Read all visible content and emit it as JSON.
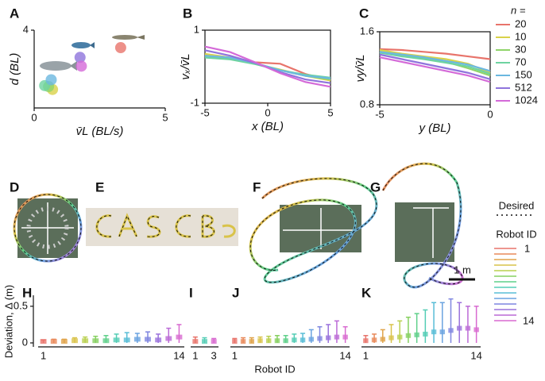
{
  "chart_data": [
    {
      "type": "scatter",
      "label": "A",
      "xlabel": "v̄L (BL/s)",
      "ylabel": "d (BL)",
      "xlim": [
        0,
        5
      ],
      "ylim": [
        0,
        4
      ],
      "xticks": [
        0,
        5
      ],
      "yticks": [
        4
      ],
      "x": [
        3.3,
        0.7,
        0.55,
        0.4,
        0.65,
        1.75,
        1.8
      ],
      "values": [
        3.1,
        0.95,
        1.1,
        1.15,
        1.45,
        2.6,
        2.15
      ],
      "colors": [
        "#e8746b",
        "#d9d24a",
        "#8fd46a",
        "#6ed3a0",
        "#6bb8e0",
        "#8f74dc",
        "#d46ad8"
      ]
    },
    {
      "type": "line",
      "label": "B",
      "xlabel": "x (BL)",
      "ylabel": "vₓ/v̄L",
      "legend_title": "n =",
      "xlim": [
        -5,
        5
      ],
      "ylim": [
        -1,
        1
      ],
      "xticks": [
        -5,
        0,
        5
      ],
      "yticks": [
        -1,
        1
      ],
      "x": [
        -5,
        -3,
        -1,
        1,
        3,
        5
      ],
      "series": [
        {
          "name": "20",
          "color": "#e8746b",
          "values": [
            0.32,
            0.22,
            0.12,
            0.08,
            -0.2,
            -0.38
          ]
        },
        {
          "name": "10",
          "color": "#d9d24a",
          "values": [
            0.35,
            0.25,
            0.08,
            -0.08,
            -0.25,
            -0.38
          ]
        },
        {
          "name": "30",
          "color": "#8fd46a",
          "values": [
            0.3,
            0.22,
            0.08,
            -0.1,
            -0.25,
            -0.35
          ]
        },
        {
          "name": "70",
          "color": "#6ed3a0",
          "values": [
            0.25,
            0.2,
            0.07,
            -0.1,
            -0.22,
            -0.3
          ]
        },
        {
          "name": "150",
          "color": "#6bb8e0",
          "values": [
            0.3,
            0.25,
            0.1,
            -0.1,
            -0.25,
            -0.32
          ]
        },
        {
          "name": "512",
          "color": "#8f74dc",
          "values": [
            0.45,
            0.3,
            0.1,
            -0.15,
            -0.35,
            -0.45
          ]
        },
        {
          "name": "1024",
          "color": "#d46ad8",
          "values": [
            0.55,
            0.4,
            0.12,
            -0.18,
            -0.42,
            -0.55
          ]
        }
      ]
    },
    {
      "type": "line",
      "label": "C",
      "xlabel": "y (BL)",
      "ylabel": "vy/v̄L",
      "xlim": [
        -5,
        0
      ],
      "ylim": [
        0.8,
        1.6
      ],
      "xticks": [
        -5,
        0
      ],
      "yticks": [
        0.8,
        1.6
      ],
      "x": [
        -5,
        -4,
        -3,
        -2,
        -1,
        0
      ],
      "series": [
        {
          "color": "#e8746b",
          "values": [
            1.41,
            1.4,
            1.38,
            1.36,
            1.33,
            1.3
          ]
        },
        {
          "color": "#d9d24a",
          "values": [
            1.4,
            1.36,
            1.33,
            1.3,
            1.25,
            1.15
          ]
        },
        {
          "color": "#8fd46a",
          "values": [
            1.38,
            1.34,
            1.31,
            1.27,
            1.2,
            1.12
          ]
        },
        {
          "color": "#6ed3a0",
          "values": [
            1.37,
            1.33,
            1.3,
            1.26,
            1.22,
            1.14
          ]
        },
        {
          "color": "#6bb8e0",
          "values": [
            1.38,
            1.35,
            1.32,
            1.28,
            1.24,
            1.17
          ]
        },
        {
          "color": "#8f74dc",
          "values": [
            1.35,
            1.3,
            1.25,
            1.2,
            1.15,
            1.08
          ]
        },
        {
          "color": "#d46ad8",
          "values": [
            1.32,
            1.27,
            1.22,
            1.17,
            1.12,
            1.05
          ]
        }
      ]
    },
    {
      "type": "box",
      "label": "H",
      "ylabel": "Deviation, Δ (m)",
      "ylim": [
        0,
        0.65
      ],
      "yticks": [
        0,
        0.5
      ],
      "categories": [
        "1",
        null,
        null,
        null,
        null,
        null,
        null,
        null,
        null,
        null,
        null,
        null,
        null,
        "14"
      ],
      "values": [
        0.02,
        0.02,
        0.02,
        0.03,
        0.03,
        0.03,
        0.03,
        0.04,
        0.04,
        0.05,
        0.05,
        0.04,
        0.06,
        0.08
      ],
      "max": [
        0.04,
        0.05,
        0.05,
        0.07,
        0.08,
        0.09,
        0.1,
        0.12,
        0.14,
        0.13,
        0.15,
        0.12,
        0.2,
        0.25
      ]
    },
    {
      "type": "box",
      "label": "I",
      "xlabel": "Robot ID",
      "ylim": [
        0,
        0.65
      ],
      "categories": [
        "1",
        null,
        "3"
      ],
      "values": [
        0.02,
        0.02,
        0.02
      ],
      "max": [
        0.08,
        0.07,
        0.06
      ]
    },
    {
      "type": "box",
      "label": "J",
      "ylim": [
        0,
        0.65
      ],
      "categories": [
        "1",
        null,
        null,
        null,
        null,
        null,
        null,
        null,
        null,
        null,
        null,
        null,
        null,
        "14"
      ],
      "values": [
        0.02,
        0.02,
        0.02,
        0.03,
        0.03,
        0.03,
        0.03,
        0.04,
        0.04,
        0.05,
        0.06,
        0.07,
        0.08,
        0.08
      ],
      "max": [
        0.06,
        0.07,
        0.07,
        0.08,
        0.09,
        0.1,
        0.1,
        0.12,
        0.13,
        0.18,
        0.22,
        0.25,
        0.3,
        0.22
      ]
    },
    {
      "type": "box",
      "label": "K",
      "ylim": [
        0,
        0.65
      ],
      "categories": [
        "1",
        null,
        null,
        null,
        null,
        null,
        null,
        null,
        null,
        null,
        null,
        null,
        null,
        "14"
      ],
      "values": [
        0.03,
        0.04,
        0.05,
        0.07,
        0.08,
        0.1,
        0.11,
        0.12,
        0.15,
        0.15,
        0.17,
        0.2,
        0.2,
        0.18
      ],
      "max": [
        0.1,
        0.12,
        0.18,
        0.25,
        0.3,
        0.35,
        0.4,
        0.45,
        0.55,
        0.55,
        0.6,
        0.55,
        0.5,
        0.5
      ]
    }
  ],
  "trajectories": [
    {
      "label": "D"
    },
    {
      "label": "E"
    },
    {
      "label": "F"
    },
    {
      "label": "G"
    }
  ],
  "scale_bar": "1 m",
  "robot_legend": {
    "desired": "Desired",
    "title": "Robot ID",
    "first": "1",
    "last": "14",
    "colors": [
      "#e8746b",
      "#e8895a",
      "#e0a34a",
      "#d9c34a",
      "#b9d04f",
      "#86d060",
      "#5fd08a",
      "#54cdb5",
      "#58bdd6",
      "#6aa3e0",
      "#7f86e0",
      "#9a72dc",
      "#bb6ad6",
      "#d86ad0"
    ]
  }
}
